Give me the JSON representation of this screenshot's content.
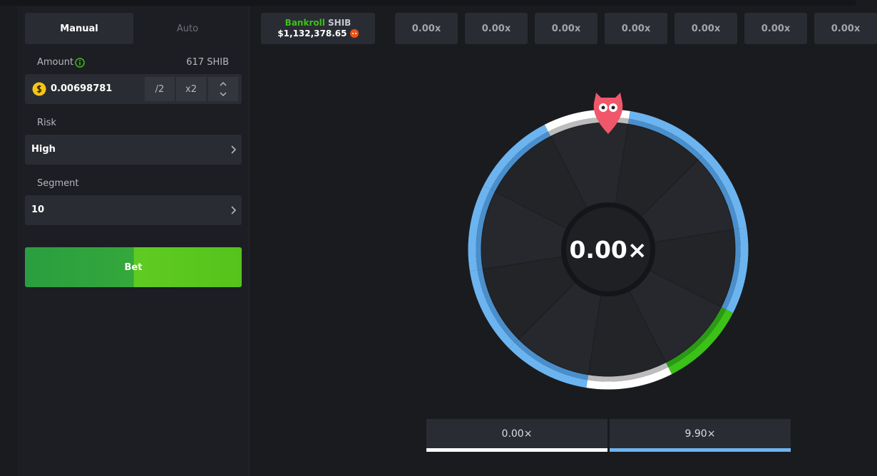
{
  "tabs": [
    "Manual",
    "Auto"
  ],
  "amount": {
    "label": "Amount",
    "balance": "617 SHIB",
    "value": "0.00698781",
    "half": "/2",
    "double": "x2"
  },
  "risk": {
    "label": "Risk",
    "value": "High"
  },
  "segment": {
    "label": "Segment",
    "value": "10"
  },
  "bet_button": "Bet",
  "bankroll": {
    "label": "Bankroll",
    "currency": "SHIB",
    "value": "$1,132,378.65"
  },
  "history": [
    "0.00x",
    "0.00x",
    "0.00x",
    "0.00x",
    "0.00x",
    "0.00x",
    "0.00x"
  ],
  "wheel": {
    "center": "0.00×"
  },
  "payouts": [
    "0.00×",
    "9.90×"
  ]
}
